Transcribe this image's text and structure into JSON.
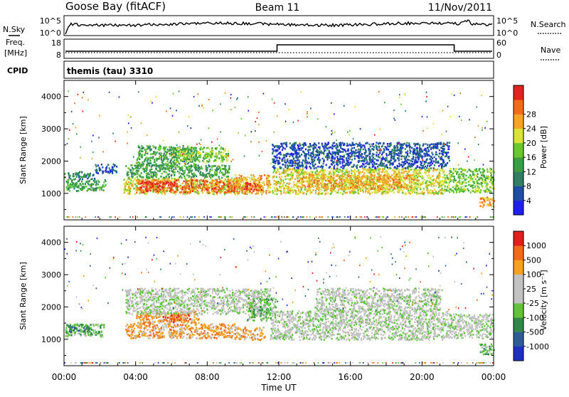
{
  "header": {
    "station": "Goose Bay (fitACF)",
    "beam": "Beam 11",
    "date": "11/Nov/2011"
  },
  "noise_panel": {
    "left_label": "N.Sky",
    "left_ticks": [
      "10^5",
      "10^0"
    ],
    "right_label": "N.Search",
    "right_ticks": [
      "10^5",
      "10^0"
    ]
  },
  "freq_panel": {
    "left_label_top": "Freq.",
    "left_label_unit": "[MHz]",
    "left_ticks": [
      "18",
      "8"
    ],
    "right_label": "Nave",
    "right_ticks": [
      "60",
      "0"
    ],
    "cpid_label": "CPID",
    "cpid_value": "themis (tau) 3310"
  },
  "chart_data": [
    {
      "type": "heatmap",
      "name": "Power",
      "ylabel": "Slant Range [km]",
      "ylim": [
        180,
        4500
      ],
      "yticks": [
        1000,
        2000,
        3000,
        4000
      ],
      "xlim": [
        0,
        24
      ],
      "colorbar": {
        "label": "Power [dB]",
        "ticks": [
          "4",
          "8",
          "12",
          "16",
          "20",
          "24",
          "28"
        ],
        "colors": [
          "#1f1ff0",
          "#1c4ea6",
          "#2e7f63",
          "#3c9e42",
          "#66c833",
          "#d8e23a",
          "#f2a526",
          "#ee6b1f",
          "#e0251e"
        ]
      },
      "bands": [
        {
          "t0": 0.0,
          "t1": 0.05,
          "r0": 1450,
          "r1": 1700,
          "level": 3
        },
        {
          "t0": 0.05,
          "t1": 2.3,
          "r0": 1100,
          "r1": 1450,
          "level": 3
        },
        {
          "t0": 0.2,
          "t1": 1.7,
          "r0": 1450,
          "r1": 1700,
          "level": 2
        },
        {
          "t0": 1.7,
          "t1": 2.9,
          "r0": 1650,
          "r1": 1950,
          "level": 1
        },
        {
          "t0": 3.3,
          "t1": 10.2,
          "r0": 1000,
          "r1": 1500,
          "level": 5
        },
        {
          "t0": 4.0,
          "t1": 9.5,
          "r0": 1050,
          "r1": 1450,
          "level": 7
        },
        {
          "t0": 4.2,
          "t1": 6.2,
          "r0": 1200,
          "r1": 1400,
          "level": 8
        },
        {
          "t0": 3.4,
          "t1": 9.2,
          "r0": 1500,
          "r1": 1900,
          "level": 3
        },
        {
          "t0": 4.0,
          "t1": 7.4,
          "r0": 1850,
          "r1": 2500,
          "level": 3
        },
        {
          "t0": 6.0,
          "t1": 9.2,
          "r0": 2000,
          "r1": 2450,
          "level": 4
        },
        {
          "t0": 9.5,
          "t1": 11.5,
          "r0": 1000,
          "r1": 1600,
          "level": 6
        },
        {
          "t0": 10.0,
          "t1": 11.0,
          "r0": 1050,
          "r1": 1350,
          "level": 8
        },
        {
          "t0": 11.6,
          "t1": 21.2,
          "r0": 1000,
          "r1": 1800,
          "level": 5
        },
        {
          "t0": 13.0,
          "t1": 19.5,
          "r0": 1150,
          "r1": 1600,
          "level": 6
        },
        {
          "t0": 11.6,
          "t1": 21.5,
          "r0": 1800,
          "r1": 2600,
          "level": 1
        },
        {
          "t0": 21.2,
          "t1": 24.0,
          "r0": 1050,
          "r1": 1800,
          "level": 4
        },
        {
          "t0": 23.2,
          "t1": 24.0,
          "r0": 600,
          "r1": 900,
          "level": 6
        }
      ]
    },
    {
      "type": "heatmap",
      "name": "Velocity",
      "ylabel": "Slant Range [km]",
      "ylim": [
        180,
        4500
      ],
      "yticks": [
        1000,
        2000,
        3000,
        4000
      ],
      "xlim": [
        0,
        24
      ],
      "xticks": [
        "00:00",
        "04:00",
        "08:00",
        "12:00",
        "16:00",
        "20:00",
        "00:00"
      ],
      "xlabel": "Time UT",
      "colorbar": {
        "label": "Velocity [m s⁻¹]",
        "ticks": [
          "1000",
          "500",
          "100",
          "25",
          "-25",
          "-100",
          "-500",
          "-1000"
        ],
        "colors": [
          "#1f2fbf",
          "#2b5e99",
          "#2f8a4a",
          "#5fc43a",
          "#c2c2c2",
          "#c2c2c2",
          "#f5a21e",
          "#ef6a1c",
          "#e0201a"
        ]
      },
      "bands": [
        {
          "t0": 0.0,
          "t1": 2.2,
          "r0": 1100,
          "r1": 1500,
          "level": 3
        },
        {
          "t0": 0.2,
          "t1": 1.5,
          "r0": 1250,
          "r1": 1450,
          "level": 2
        },
        {
          "t0": 3.4,
          "t1": 9.5,
          "r0": 1050,
          "r1": 1500,
          "level": 6
        },
        {
          "t0": 4.0,
          "t1": 7.5,
          "r0": 1500,
          "r1": 1900,
          "level": 6
        },
        {
          "t0": 5.5,
          "t1": 7.0,
          "r0": 1550,
          "r1": 1800,
          "level": 7
        },
        {
          "t0": 3.4,
          "t1": 11.5,
          "r0": 1800,
          "r1": 2600,
          "level": 4
        },
        {
          "t0": 9.5,
          "t1": 11.2,
          "r0": 1000,
          "r1": 1400,
          "level": 6
        },
        {
          "t0": 10.2,
          "t1": 11.8,
          "r0": 1600,
          "r1": 2300,
          "level": 3
        },
        {
          "t0": 11.5,
          "t1": 21.5,
          "r0": 1000,
          "r1": 1900,
          "level": 4
        },
        {
          "t0": 14.0,
          "t1": 21.0,
          "r0": 1900,
          "r1": 2600,
          "level": 4
        },
        {
          "t0": 21.5,
          "t1": 24.0,
          "r0": 1050,
          "r1": 1800,
          "level": 4
        },
        {
          "t0": 23.2,
          "t1": 24.0,
          "r0": 550,
          "r1": 900,
          "level": 3
        }
      ]
    }
  ]
}
